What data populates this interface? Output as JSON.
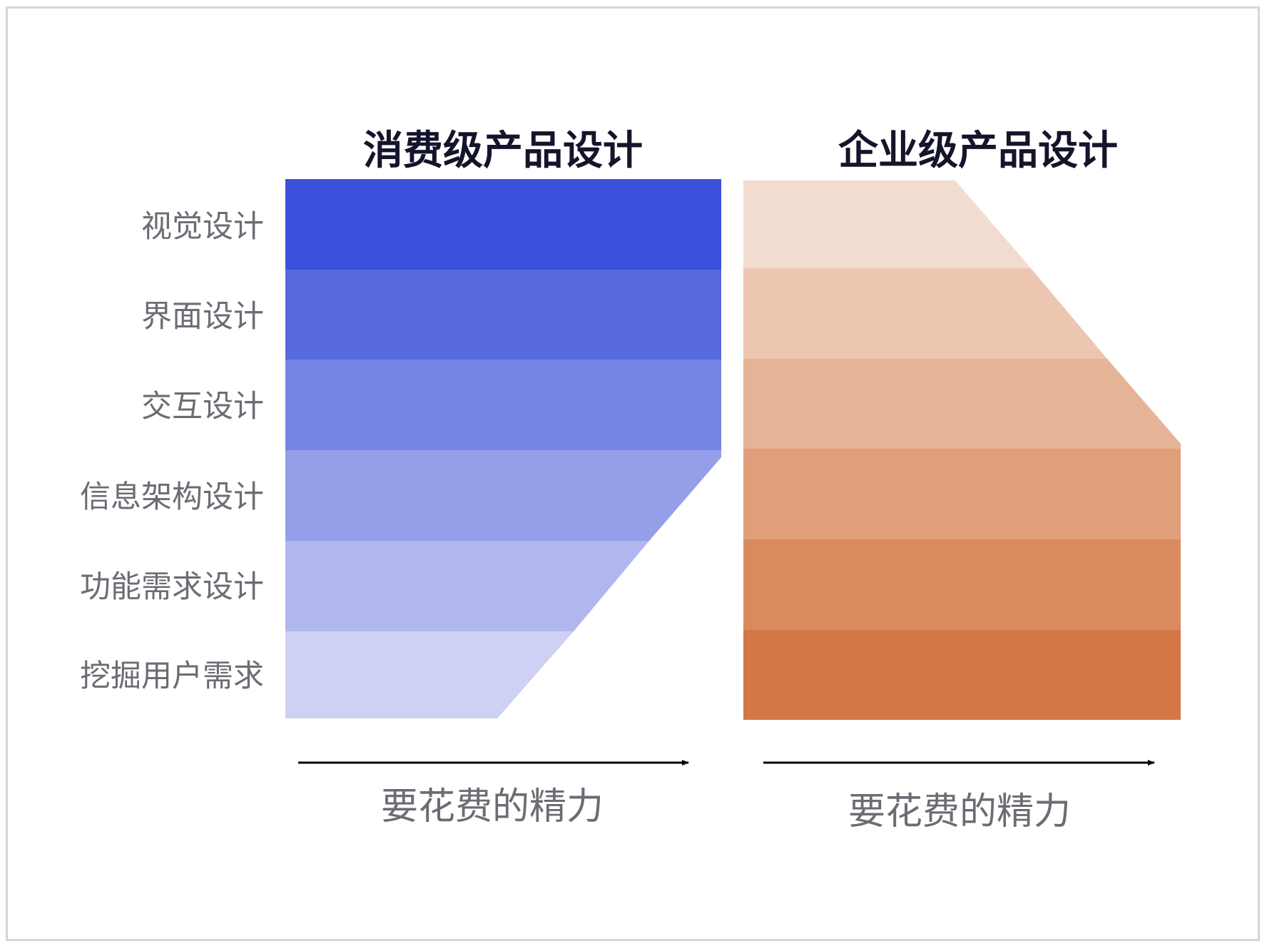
{
  "row_labels": [
    "视觉设计",
    "界面设计",
    "交互设计",
    "信息架构设计",
    "功能需求设计",
    "挖掘用户需求"
  ],
  "panels": [
    {
      "title": "消费级产品设计",
      "axis_label": "要花费的精力",
      "colors": [
        "#3a50da",
        "#566ade",
        "#7584e3",
        "#949ee9",
        "#b1b7ee",
        "#ced1f4"
      ],
      "effort_levels": [
        1.0,
        1.0,
        1.0,
        1.0,
        0.83,
        0.49
      ]
    },
    {
      "title": "企业级产品设计",
      "axis_label": "要花费的精力",
      "colors": [
        "#f2dccf",
        "#ecc6b0",
        "#e5b396",
        "#e09f7a",
        "#d98b5f",
        "#d47747"
      ],
      "effort_levels": [
        0.49,
        0.66,
        0.83,
        1.0,
        1.0,
        1.0
      ]
    }
  ]
}
